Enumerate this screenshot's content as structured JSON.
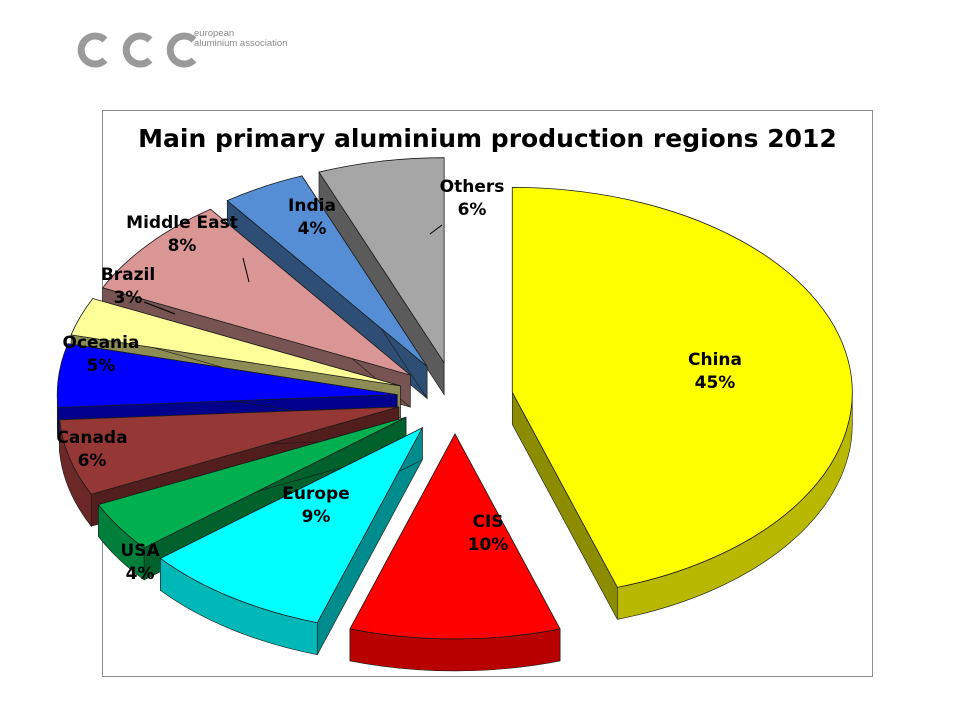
{
  "header": {
    "logo_line1": "european",
    "logo_line2": "aluminium association"
  },
  "chart_data": {
    "type": "pie",
    "title": "Main primary aluminium production regions 2012",
    "slices": [
      {
        "label": "China",
        "value": 45,
        "value_label": "45%",
        "color": "#ffff00"
      },
      {
        "label": "CIS",
        "value": 10,
        "value_label": "10%",
        "color": "#ff0000"
      },
      {
        "label": "Europe",
        "value": 9,
        "value_label": "9%",
        "color": "#00ffff"
      },
      {
        "label": "USA",
        "value": 4,
        "value_label": "4%",
        "color": "#00b050"
      },
      {
        "label": "Canada",
        "value": 6,
        "value_label": "6%",
        "color": "#953735"
      },
      {
        "label": "Oceania",
        "value": 5,
        "value_label": "5%",
        "color": "#0000ff"
      },
      {
        "label": "Brazil",
        "value": 3,
        "value_label": "3%",
        "color": "#ffff99"
      },
      {
        "label": "Middle East",
        "value": 8,
        "value_label": "8%",
        "color": "#d99694"
      },
      {
        "label": "India",
        "value": 4,
        "value_label": "4%",
        "color": "#558ed5"
      },
      {
        "label": "Others",
        "value": 6,
        "value_label": "6%",
        "color": "#a6a6a6"
      }
    ],
    "legend": "none",
    "data_labels": "category and percentage"
  }
}
